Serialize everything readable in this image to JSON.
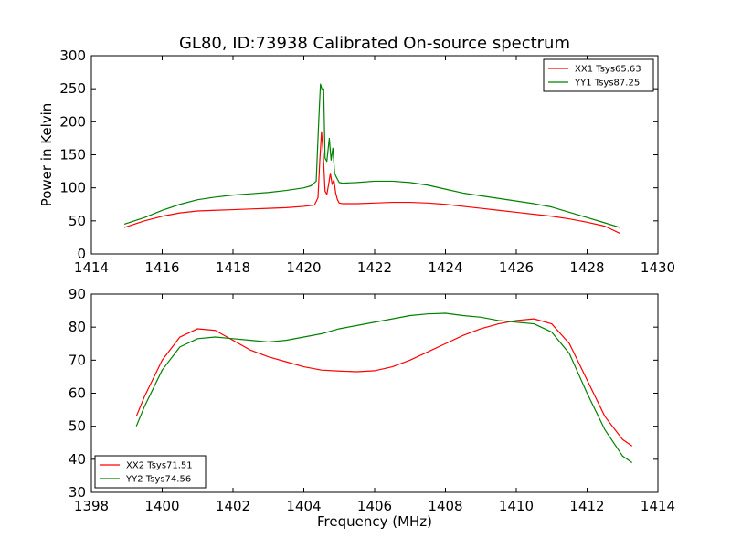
{
  "colors": {
    "xx": "#ff0000",
    "yy": "#008000"
  },
  "chart_data": [
    {
      "type": "line",
      "title": "GL80, ID:73938 Calibrated On-source spectrum",
      "xlabel": "",
      "ylabel": "Power in Kelvin",
      "xlim": [
        1414,
        1430
      ],
      "ylim": [
        0,
        300
      ],
      "xticks": [
        1414,
        1416,
        1418,
        1420,
        1422,
        1424,
        1426,
        1428,
        1430
      ],
      "yticks": [
        0,
        50,
        100,
        150,
        200,
        250,
        300
      ],
      "legend_position": "top-right",
      "series": [
        {
          "name": "XX1 Tsys65.63",
          "color": "#ff0000",
          "x": [
            1414.93,
            1415.5,
            1416,
            1416.5,
            1417,
            1417.5,
            1418,
            1418.5,
            1419,
            1419.5,
            1420,
            1420.3,
            1420.4,
            1420.45,
            1420.5,
            1420.55,
            1420.6,
            1420.65,
            1420.7,
            1420.75,
            1420.8,
            1420.85,
            1420.9,
            1420.95,
            1421.0,
            1421.1,
            1421.5,
            1422,
            1422.5,
            1423,
            1423.5,
            1424,
            1424.5,
            1425,
            1425.5,
            1426,
            1426.5,
            1427,
            1427.5,
            1428,
            1428.5,
            1428.93
          ],
          "y": [
            40,
            50,
            57,
            62,
            65,
            66,
            67,
            68,
            69,
            70,
            72,
            74,
            85,
            140,
            185,
            150,
            95,
            90,
            105,
            122,
            105,
            112,
            92,
            82,
            77,
            76,
            76,
            77,
            78,
            78,
            77,
            75,
            72,
            69,
            66,
            63,
            60,
            57,
            53,
            48,
            42,
            31
          ]
        },
        {
          "name": "YY1 Tsys87.25",
          "color": "#008000",
          "x": [
            1414.93,
            1415.5,
            1416,
            1416.5,
            1417,
            1417.5,
            1418,
            1418.5,
            1419,
            1419.5,
            1420,
            1420.2,
            1420.35,
            1420.42,
            1420.47,
            1420.52,
            1420.56,
            1420.6,
            1420.65,
            1420.72,
            1420.77,
            1420.82,
            1420.87,
            1420.93,
            1421.0,
            1421.1,
            1421.5,
            1422,
            1422.5,
            1423,
            1423.5,
            1424,
            1424.5,
            1425,
            1425.5,
            1426,
            1426.5,
            1427,
            1427.5,
            1428,
            1428.5,
            1428.93
          ],
          "y": [
            45,
            55,
            66,
            75,
            82,
            86,
            89,
            91,
            93,
            96,
            100,
            103,
            110,
            200,
            257,
            248,
            250,
            145,
            140,
            175,
            142,
            160,
            122,
            115,
            108,
            107,
            108,
            110,
            110,
            108,
            104,
            98,
            92,
            88,
            84,
            80,
            76,
            71,
            63,
            55,
            47,
            40
          ]
        }
      ]
    },
    {
      "type": "line",
      "title": "",
      "xlabel": "Frequency (MHz)",
      "ylabel": "",
      "xlim": [
        1398,
        1414
      ],
      "ylim": [
        30,
        90
      ],
      "xticks": [
        1398,
        1400,
        1402,
        1404,
        1406,
        1408,
        1410,
        1412,
        1414
      ],
      "yticks": [
        30,
        40,
        50,
        60,
        70,
        80,
        90
      ],
      "legend_position": "bottom-left",
      "series": [
        {
          "name": "XX2 Tsys71.51",
          "color": "#ff0000",
          "x": [
            1399.27,
            1399.5,
            1400,
            1400.5,
            1401,
            1401.5,
            1402,
            1402.5,
            1403,
            1403.5,
            1404,
            1404.5,
            1405,
            1405.5,
            1406,
            1406.5,
            1407,
            1407.5,
            1408,
            1408.5,
            1409,
            1409.5,
            1410,
            1410.5,
            1411,
            1411.5,
            1412,
            1412.5,
            1413,
            1413.27
          ],
          "y": [
            53,
            59,
            70,
            77,
            79.5,
            79,
            76,
            73,
            71,
            69.5,
            68,
            67,
            66.7,
            66.5,
            66.8,
            68,
            70,
            72.5,
            75,
            77.5,
            79.5,
            81,
            82,
            82.5,
            81,
            75,
            64,
            53,
            46,
            44
          ]
        },
        {
          "name": "YY2 Tsys74.56",
          "color": "#008000",
          "x": [
            1399.27,
            1399.5,
            1400,
            1400.5,
            1401,
            1401.5,
            1402,
            1402.5,
            1403,
            1403.5,
            1404,
            1404.5,
            1405,
            1405.5,
            1406,
            1406.5,
            1407,
            1407.5,
            1408,
            1408.5,
            1409,
            1409.5,
            1410,
            1410.5,
            1411,
            1411.5,
            1412,
            1412.5,
            1413,
            1413.27
          ],
          "y": [
            50,
            56,
            67,
            74,
            76.5,
            77,
            76.5,
            76,
            75.5,
            76,
            77,
            78,
            79.5,
            80.5,
            81.5,
            82.5,
            83.5,
            84,
            84.2,
            83.5,
            83,
            82,
            81.5,
            81,
            78.5,
            72,
            60,
            49,
            41,
            39
          ]
        }
      ]
    }
  ]
}
